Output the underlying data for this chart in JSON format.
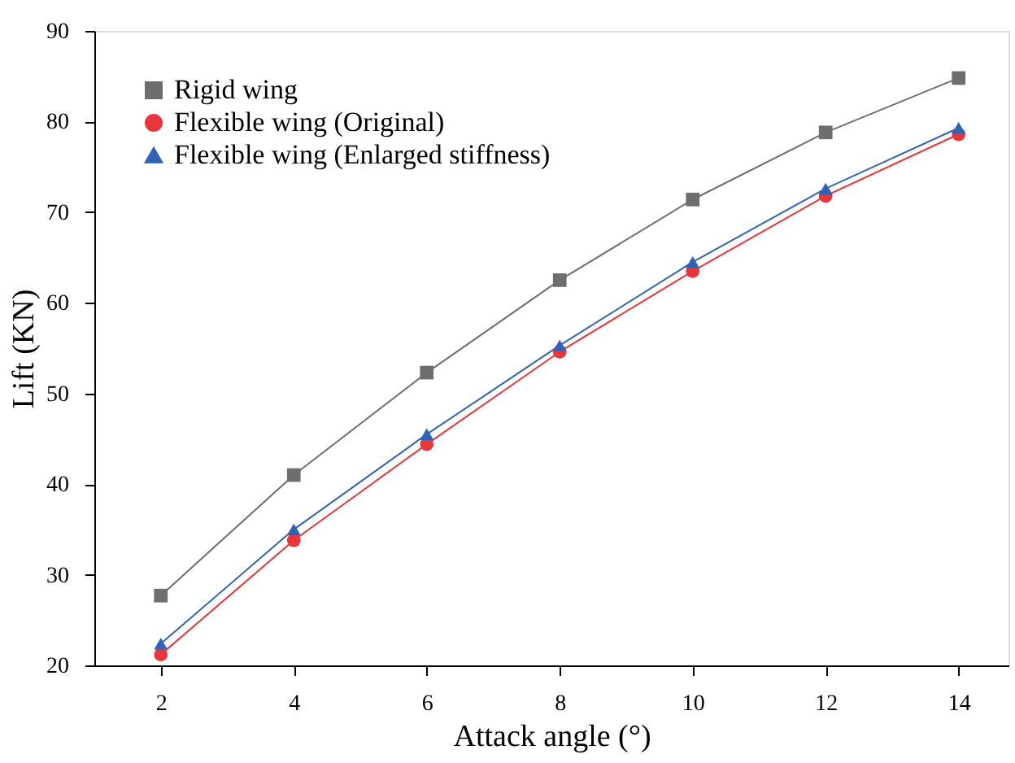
{
  "chart_data": {
    "type": "line",
    "xlabel": "Attack angle (°)",
    "ylabel": "Lift (KN)",
    "x": [
      2,
      4,
      6,
      8,
      10,
      12,
      14
    ],
    "xlim": [
      1,
      14.75
    ],
    "xticks": [
      2,
      4,
      6,
      8,
      10,
      12,
      14
    ],
    "ylim": [
      20,
      90
    ],
    "yticks": [
      20,
      30,
      40,
      50,
      60,
      70,
      80,
      90
    ],
    "grid": false,
    "legend": "top left",
    "line_style": "solid",
    "series": [
      {
        "name": "Rigid wing",
        "color": "#6e6e6e",
        "marker": "square",
        "values": [
          27.7,
          41.0,
          52.3,
          62.5,
          71.4,
          78.8,
          84.8
        ]
      },
      {
        "name": "Flexible wing (Original)",
        "color": "#e8363a",
        "marker": "circle",
        "values": [
          21.2,
          33.8,
          44.4,
          54.6,
          63.5,
          71.8,
          78.6
        ]
      },
      {
        "name": "Flexible wing (Enlarged stiffness)",
        "color": "#2f63b8",
        "marker": "triangle",
        "values": [
          22.4,
          35.0,
          45.5,
          55.3,
          64.5,
          72.6,
          79.3
        ]
      }
    ]
  }
}
